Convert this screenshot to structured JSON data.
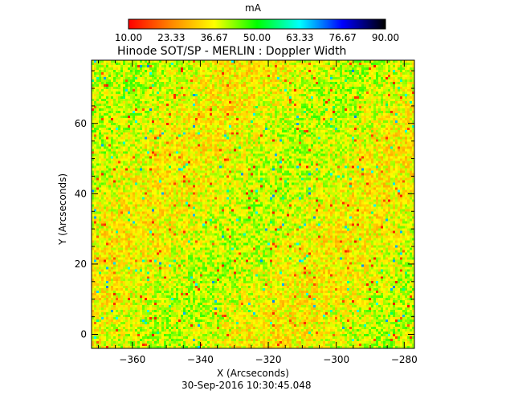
{
  "chart_data": {
    "type": "heatmap",
    "title": "Hinode SOT/SP - MERLIN : Doppler Width",
    "xlabel": "X (Arcseconds)",
    "ylabel": "Y (Arcseconds)",
    "xlim": [
      -372,
      -277
    ],
    "ylim": [
      -4,
      78
    ],
    "xticks": [
      -360,
      -340,
      -320,
      -300,
      -280
    ],
    "yticks": [
      0,
      20,
      40,
      60
    ],
    "colorbar": {
      "unit": "mA",
      "range": [
        10,
        90
      ],
      "ticks": [
        "10.00",
        "23.33",
        "36.67",
        "50.00",
        "63.33",
        "76.67",
        "90.00"
      ],
      "colormap": [
        "#ff0000",
        "#ff8800",
        "#ffff00",
        "#00ff00",
        "#00ffff",
        "#0000ff",
        "#000000"
      ]
    },
    "dominant_range": [
      25,
      45
    ],
    "footer_text": "30-Sep-2016 10:30:45.048"
  }
}
